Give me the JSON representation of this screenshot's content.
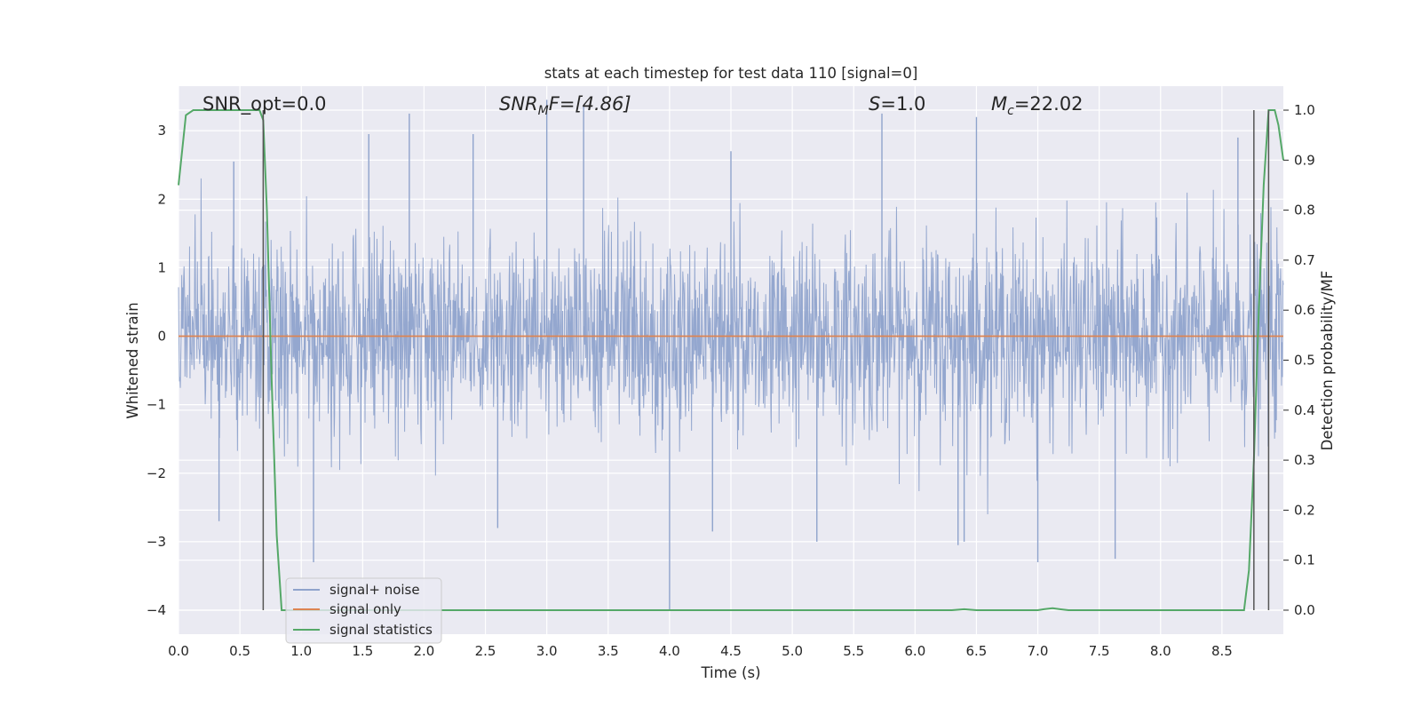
{
  "chart_data": {
    "type": "line",
    "title": "stats at each timestep for test data 110 [signal=0]",
    "xlabel": "Time (s)",
    "ylabel": "Whitened strain",
    "y2label": "Detection probability/MF",
    "xlim": [
      0.0,
      9.0
    ],
    "ylim": [
      -4.35,
      3.65
    ],
    "y2lim": [
      -0.048,
      1.048
    ],
    "x_ticks": [
      0.0,
      0.5,
      1.0,
      1.5,
      2.0,
      2.5,
      3.0,
      3.5,
      4.0,
      4.5,
      5.0,
      5.5,
      6.0,
      6.5,
      7.0,
      7.5,
      8.0,
      8.5
    ],
    "x_tick_labels": [
      "0.0",
      "0.5",
      "1.0",
      "1.5",
      "2.0",
      "2.5",
      "3.0",
      "3.5",
      "4.0",
      "4.5",
      "5.0",
      "5.5",
      "6.0",
      "6.5",
      "7.0",
      "7.5",
      "8.0",
      "8.5"
    ],
    "y_ticks": [
      -4,
      -3,
      -2,
      -1,
      0,
      1,
      2,
      3
    ],
    "y_tick_labels": [
      "−4",
      "−3",
      "−2",
      "−1",
      "0",
      "1",
      "2",
      "3"
    ],
    "y2_ticks": [
      0.0,
      0.1,
      0.2,
      0.3,
      0.4,
      0.5,
      0.6,
      0.7,
      0.8,
      0.9,
      1.0
    ],
    "y2_tick_labels": [
      "0.0",
      "0.1",
      "0.2",
      "0.3",
      "0.4",
      "0.5",
      "0.6",
      "0.7",
      "0.8",
      "0.9",
      "1.0"
    ],
    "grid": true,
    "legend_placement": "lower-left",
    "annotations": {
      "snr_opt": "SNR_opt=0.0",
      "snr_mf_main": "SNR",
      "snr_mf_sub": "M",
      "snr_mf_rest": "F=[4.86]",
      "s_main": "S",
      "s_rest": "=1.0",
      "mc_main": "M",
      "mc_sub": "c",
      "mc_rest": "=22.02"
    },
    "series": [
      {
        "name": "signal+ noise",
        "color": "#8fa3cc",
        "sampling": "noise",
        "approx_std": 0.72,
        "x_range": [
          0.0,
          9.0
        ],
        "peaks": [
          [
            1.88,
            3.25
          ],
          [
            3.0,
            3.45
          ],
          [
            3.3,
            3.35
          ],
          [
            5.73,
            3.25
          ],
          [
            6.5,
            3.2
          ],
          [
            8.63,
            2.9
          ],
          [
            0.45,
            2.55
          ],
          [
            1.55,
            2.95
          ],
          [
            2.4,
            2.95
          ],
          [
            4.5,
            2.7
          ],
          [
            4.0,
            -4.0
          ],
          [
            1.1,
            -3.3
          ],
          [
            6.35,
            -3.05
          ],
          [
            6.4,
            -3.0
          ],
          [
            7.0,
            -3.3
          ],
          [
            7.63,
            -3.25
          ],
          [
            0.33,
            -2.7
          ],
          [
            2.6,
            -2.8
          ],
          [
            4.35,
            -2.85
          ],
          [
            5.2,
            -3.0
          ]
        ]
      },
      {
        "name": "signal only",
        "color": "#dd8452",
        "x": [
          0.0,
          9.0
        ],
        "y": [
          0.0,
          0.0
        ]
      },
      {
        "name": "signal statistics",
        "axis": "right",
        "color": "#55a868",
        "x": [
          0.0,
          0.06,
          0.12,
          0.2,
          0.3,
          0.4,
          0.5,
          0.6,
          0.66,
          0.69,
          0.72,
          0.76,
          0.8,
          0.84,
          1.0,
          2.0,
          3.0,
          4.0,
          5.0,
          6.0,
          6.3,
          6.4,
          6.5,
          6.6,
          7.0,
          7.05,
          7.12,
          7.18,
          7.25,
          8.0,
          8.5,
          8.68,
          8.72,
          8.76,
          8.8,
          8.84,
          8.88,
          8.9,
          8.93,
          8.96,
          9.0
        ],
        "y": [
          0.85,
          0.99,
          1.0,
          1.0,
          1.0,
          1.0,
          1.0,
          1.0,
          1.0,
          0.98,
          0.8,
          0.45,
          0.15,
          0.0,
          0.0,
          0.0,
          0.0,
          0.0,
          0.0,
          0.0,
          0.0,
          0.002,
          0.0,
          0.0,
          0.0,
          0.002,
          0.004,
          0.002,
          0.0,
          0.0,
          0.0,
          0.0,
          0.08,
          0.3,
          0.6,
          0.85,
          1.0,
          1.0,
          1.0,
          0.97,
          0.9
        ]
      }
    ],
    "vlines": [
      0.69,
      8.76,
      8.88
    ],
    "vline_color": "#555555"
  }
}
